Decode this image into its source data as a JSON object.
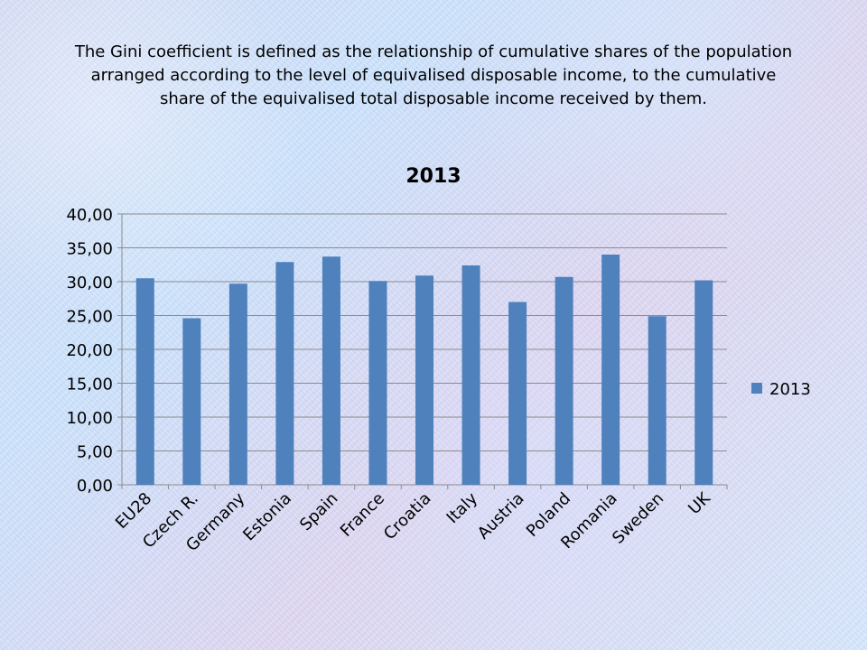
{
  "slide": {
    "heading": "The Gini coefficient is defined as the relationship of cumulative shares of the population arranged according to the level of equivalised disposable income, to the cumulative share of the equivalised total disposable income received by them."
  },
  "colors": {
    "bar": "#4f81bd",
    "text": "#000000",
    "grid": "#8c8c8c"
  },
  "chart_data": {
    "type": "bar",
    "title": "2013",
    "categories": [
      "EU28",
      "Czech R.",
      "Germany",
      "Estonia",
      "Spain",
      "France",
      "Croatia",
      "Italy",
      "Austria",
      "Poland",
      "Romania",
      "Sweden",
      "UK"
    ],
    "series": [
      {
        "name": "2013",
        "values": [
          30.5,
          24.6,
          29.7,
          32.9,
          33.7,
          30.1,
          30.9,
          32.4,
          27.0,
          30.7,
          34.0,
          24.9,
          30.2
        ]
      }
    ],
    "xlabel": "",
    "ylabel": "",
    "ylim": [
      0,
      40
    ],
    "yticks": [
      "0,00",
      "5,00",
      "10,00",
      "15,00",
      "20,00",
      "25,00",
      "30,00",
      "35,00",
      "40,00"
    ],
    "grid": true,
    "legend": "right"
  }
}
